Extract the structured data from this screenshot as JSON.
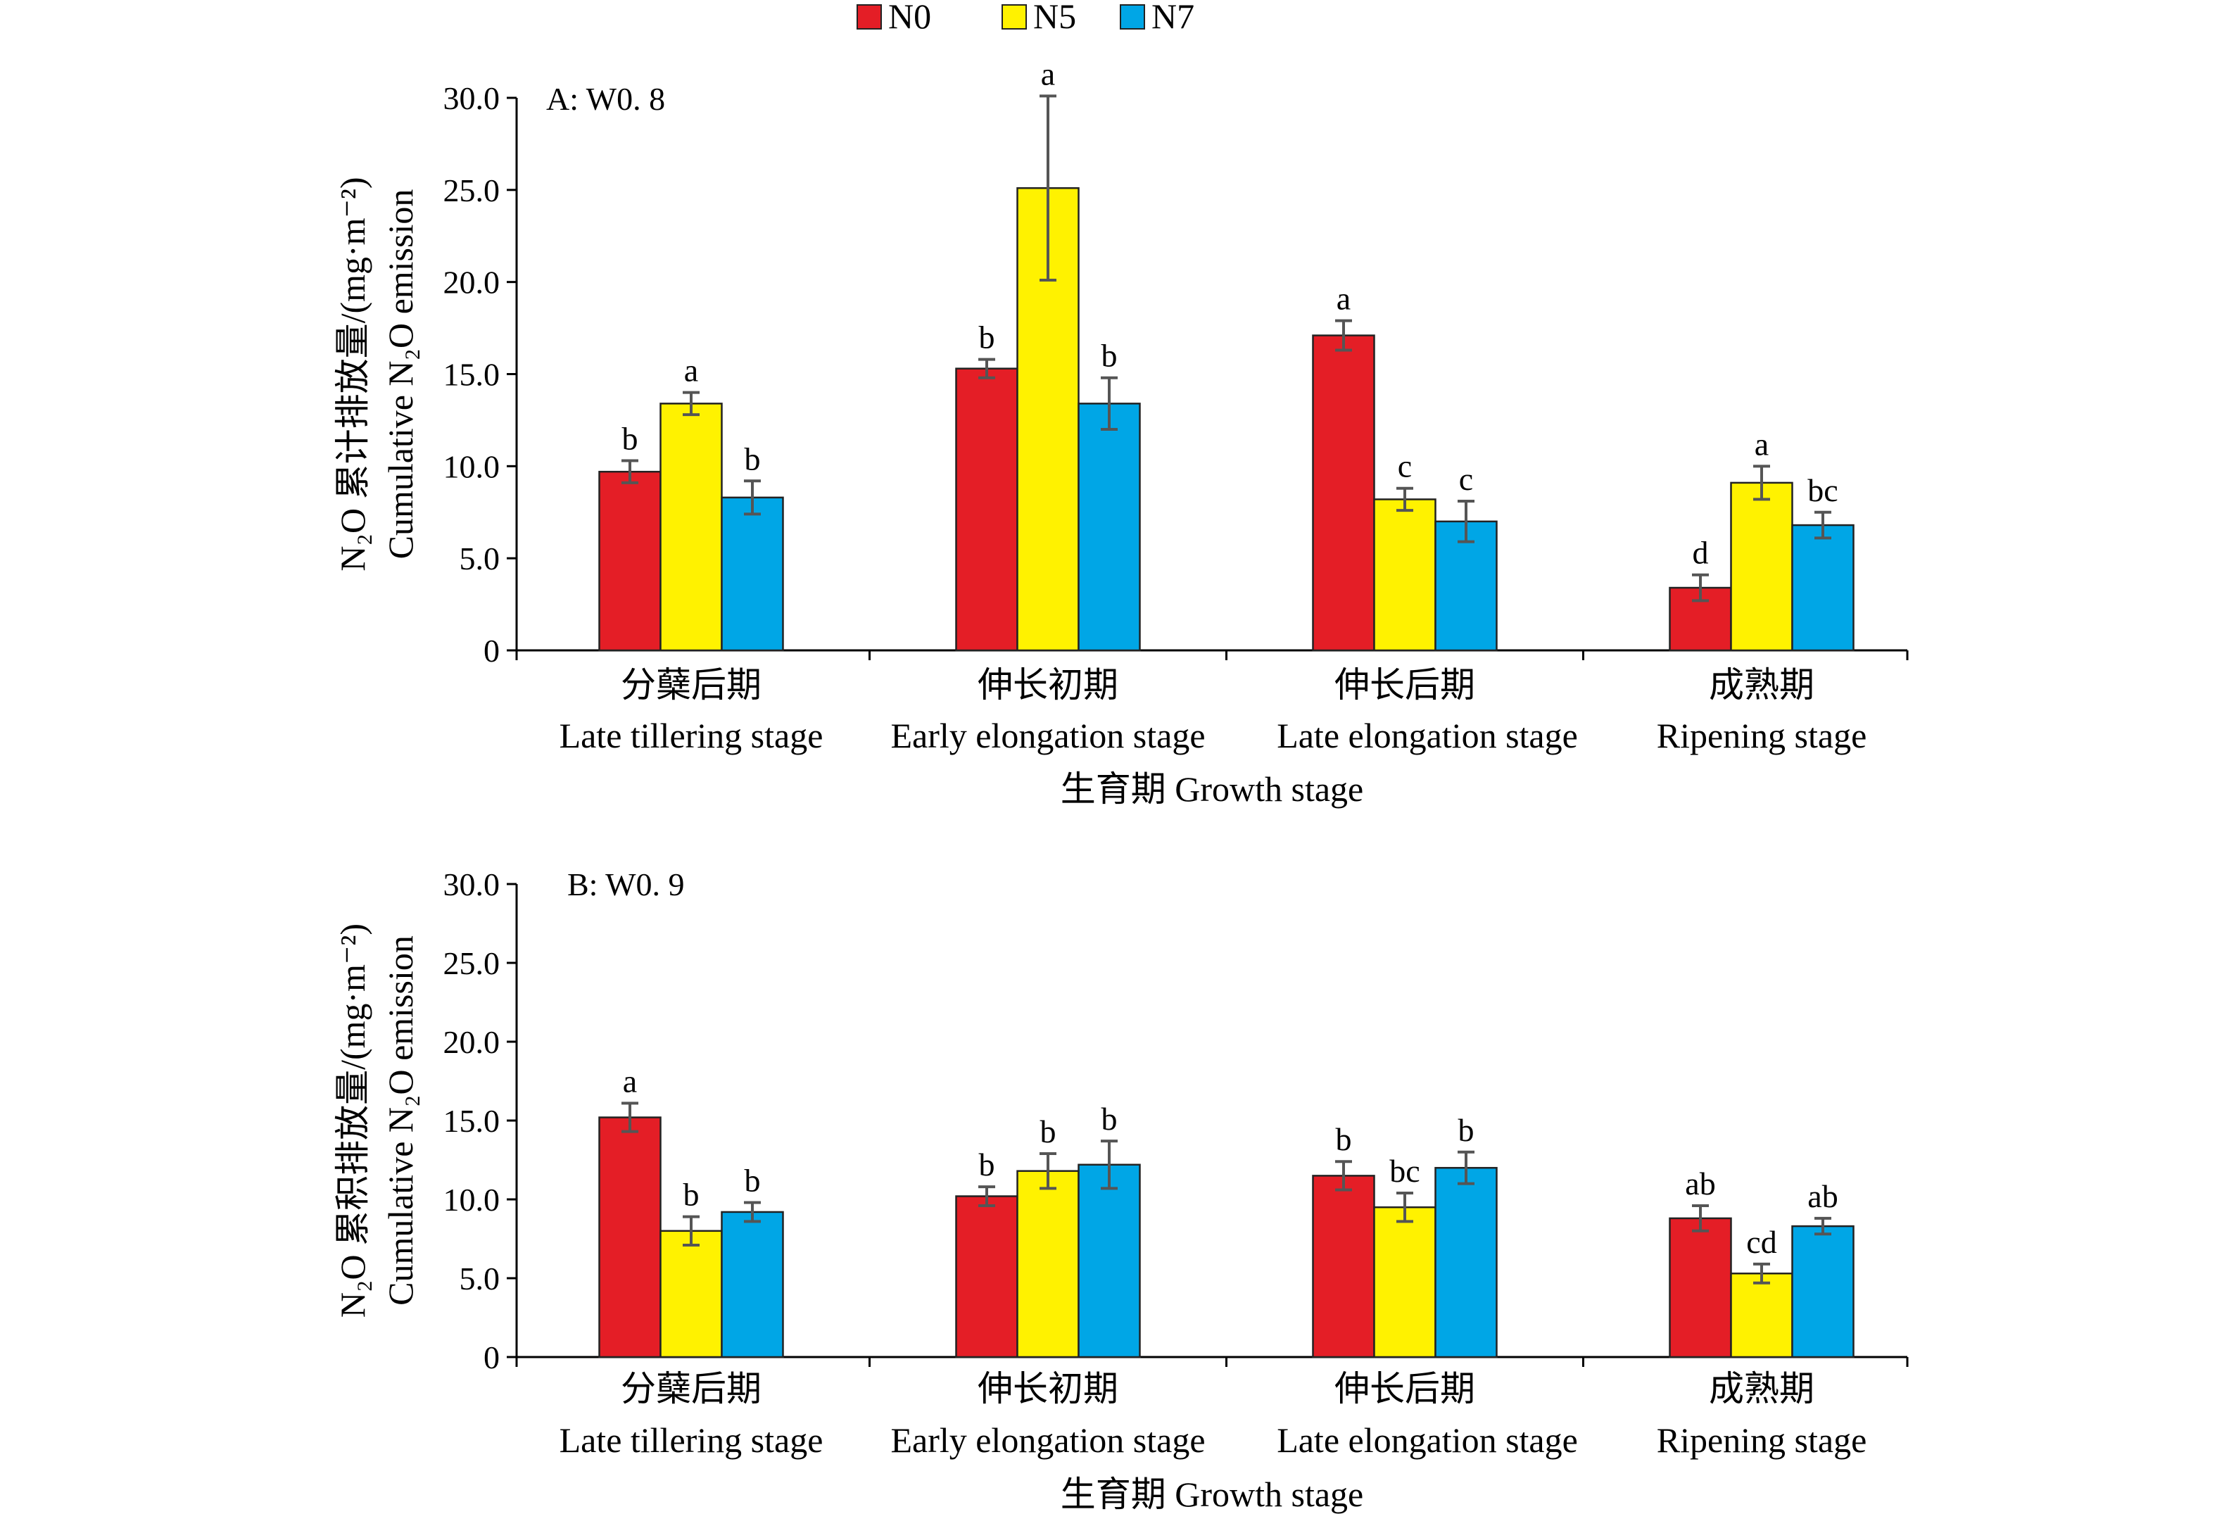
{
  "legend": [
    {
      "name": "N0",
      "color": "#E41E26"
    },
    {
      "name": "N5",
      "color": "#FFF200"
    },
    {
      "name": "N7",
      "color": "#00A6E6"
    }
  ],
  "chart_data": [
    {
      "type": "bar",
      "panel_label": "A: W0. 8",
      "ylabel_line1": "N₂O 累计排放量/(mg·m⁻²)",
      "ylabel_line2": "Cumulative N₂O emission",
      "xlabel": "生育期 Growth stage",
      "ylim": [
        0,
        30
      ],
      "yticks": [
        "0",
        "5.0",
        "10.0",
        "15.0",
        "20.0",
        "25.0",
        "30.0"
      ],
      "categories": [
        {
          "cn": "分蘖后期",
          "en": "Late tillering stage"
        },
        {
          "cn": "伸长初期",
          "en": "Early elongation stage"
        },
        {
          "cn": "伸长后期",
          "en": "Late elongation stage"
        },
        {
          "cn": "成熟期",
          "en": "Ripening stage"
        }
      ],
      "series": [
        {
          "name": "N0",
          "values": [
            9.7,
            15.3,
            17.1,
            3.4
          ],
          "errors": [
            0.6,
            0.5,
            0.8,
            0.7
          ],
          "labels": [
            "b",
            "b",
            "a",
            "d"
          ]
        },
        {
          "name": "N5",
          "values": [
            13.4,
            25.1,
            8.2,
            9.1
          ],
          "errors": [
            0.6,
            5.0,
            0.6,
            0.9
          ],
          "labels": [
            "a",
            "a",
            "c",
            "a"
          ]
        },
        {
          "name": "N7",
          "values": [
            8.3,
            13.4,
            7.0,
            6.8
          ],
          "errors": [
            0.9,
            1.4,
            1.1,
            0.7
          ],
          "labels": [
            "b",
            "b",
            "c",
            "bc"
          ]
        }
      ]
    },
    {
      "type": "bar",
      "panel_label": "B: W0. 9",
      "ylabel_line1": "N₂O 累积排放量/(mg·m⁻²)",
      "ylabel_line2": "Cumulative N₂O emission",
      "xlabel": "生育期 Growth stage",
      "ylim": [
        0,
        30
      ],
      "yticks": [
        "0",
        "5.0",
        "10.0",
        "15.0",
        "20.0",
        "25.0",
        "30.0"
      ],
      "categories": [
        {
          "cn": "分蘖后期",
          "en": "Late tillering stage"
        },
        {
          "cn": "伸长初期",
          "en": "Early elongation stage"
        },
        {
          "cn": "伸长后期",
          "en": "Late elongation stage"
        },
        {
          "cn": "成熟期",
          "en": "Ripening stage"
        }
      ],
      "series": [
        {
          "name": "N0",
          "values": [
            15.2,
            10.2,
            11.5,
            8.8
          ],
          "errors": [
            0.9,
            0.6,
            0.9,
            0.8
          ],
          "labels": [
            "a",
            "b",
            "b",
            "ab"
          ]
        },
        {
          "name": "N5",
          "values": [
            8.0,
            11.8,
            9.5,
            5.3
          ],
          "errors": [
            0.9,
            1.1,
            0.9,
            0.6
          ],
          "labels": [
            "b",
            "b",
            "bc",
            "cd"
          ]
        },
        {
          "name": "N7",
          "values": [
            9.2,
            12.2,
            12.0,
            8.3
          ],
          "errors": [
            0.6,
            1.5,
            1.0,
            0.5
          ],
          "labels": [
            "b",
            "b",
            "b",
            "ab"
          ]
        }
      ]
    }
  ]
}
